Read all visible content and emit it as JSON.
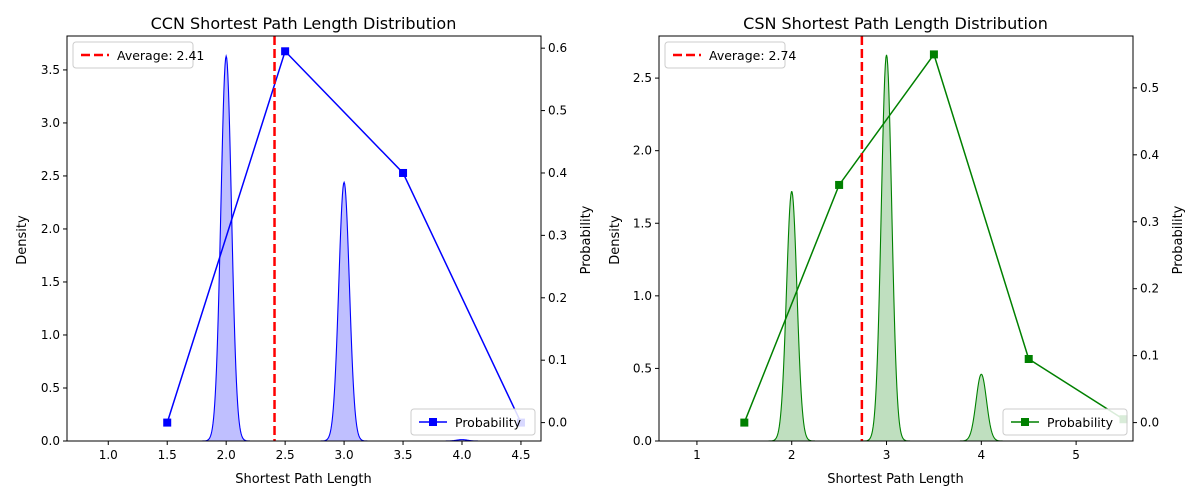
{
  "chart_data": [
    {
      "type": "area",
      "title": "CCN Shortest Path Length Distribution",
      "xlabel": "Shortest Path Length",
      "ylabel": "Density",
      "y2label": "Probability",
      "xlim": [
        0.65,
        4.67
      ],
      "ylim": [
        0,
        3.82
      ],
      "y2lim": [
        -0.0295,
        0.6195
      ],
      "xticks": [
        1.0,
        1.5,
        2.0,
        2.5,
        3.0,
        3.5,
        4.0,
        4.5
      ],
      "xtick_labels": [
        "1.0",
        "1.5",
        "2.0",
        "2.5",
        "3.0",
        "3.5",
        "4.0",
        "4.5"
      ],
      "yticks": [
        0.0,
        0.5,
        1.0,
        1.5,
        2.0,
        2.5,
        3.0,
        3.5
      ],
      "ytick_labels": [
        "0.0",
        "0.5",
        "1.0",
        "1.5",
        "2.0",
        "2.5",
        "3.0",
        "3.5"
      ],
      "y2ticks": [
        0.0,
        0.1,
        0.2,
        0.3,
        0.4,
        0.5,
        0.6
      ],
      "y2tick_labels": [
        "0.0",
        "0.1",
        "0.2",
        "0.3",
        "0.4",
        "0.5",
        "0.6"
      ],
      "color": "#0000ff",
      "fill": "#bfbfff",
      "density": {
        "x_range": [
          0.8,
          4.2
        ],
        "peaks": [
          {
            "center": 2.0,
            "height": 3.63
          },
          {
            "center": 3.0,
            "height": 2.44
          },
          {
            "center": 4.0,
            "height": 0.013
          }
        ],
        "sigma": 0.045
      },
      "probability": {
        "name": "Probability",
        "x": [
          1.5,
          2.5,
          3.5,
          4.5
        ],
        "y": [
          0.0,
          0.595,
          0.4,
          0.0
        ]
      },
      "average": {
        "value": 2.41,
        "label": "Average: 2.41",
        "color": "#ff0000"
      },
      "legend_top": "top-left",
      "legend_bottom": "bottom-right"
    },
    {
      "type": "area",
      "title": "CSN Shortest Path Length Distribution",
      "xlabel": "Shortest Path Length",
      "ylabel": "Density",
      "y2label": "Probability",
      "xlim": [
        0.6,
        5.6
      ],
      "ylim": [
        0,
        2.79
      ],
      "y2lim": [
        -0.0275,
        0.5775
      ],
      "xticks": [
        1,
        2,
        3,
        4,
        5
      ],
      "xtick_labels": [
        "1",
        "2",
        "3",
        "4",
        "5"
      ],
      "yticks": [
        0.0,
        0.5,
        1.0,
        1.5,
        2.0,
        2.5
      ],
      "ytick_labels": [
        "0.0",
        "0.5",
        "1.0",
        "1.5",
        "2.0",
        "2.5"
      ],
      "y2ticks": [
        0.0,
        0.1,
        0.2,
        0.3,
        0.4,
        0.5
      ],
      "y2tick_labels": [
        "0.0",
        "0.1",
        "0.2",
        "0.3",
        "0.4",
        "0.5"
      ],
      "color": "#008000",
      "fill": "#bfdfbf",
      "density": {
        "x_range": [
          0.75,
          5.25
        ],
        "peaks": [
          {
            "center": 2.0,
            "height": 1.72
          },
          {
            "center": 3.0,
            "height": 2.66
          },
          {
            "center": 4.0,
            "height": 0.46
          }
        ],
        "sigma": 0.055
      },
      "probability": {
        "name": "Probability",
        "x": [
          1.5,
          2.5,
          3.5,
          4.5,
          5.5
        ],
        "y": [
          0.0,
          0.355,
          0.55,
          0.095,
          0.005
        ]
      },
      "average": {
        "value": 2.74,
        "label": "Average: 2.74",
        "color": "#ff0000"
      },
      "legend_top": "top-left",
      "legend_bottom": "bottom-right"
    }
  ]
}
